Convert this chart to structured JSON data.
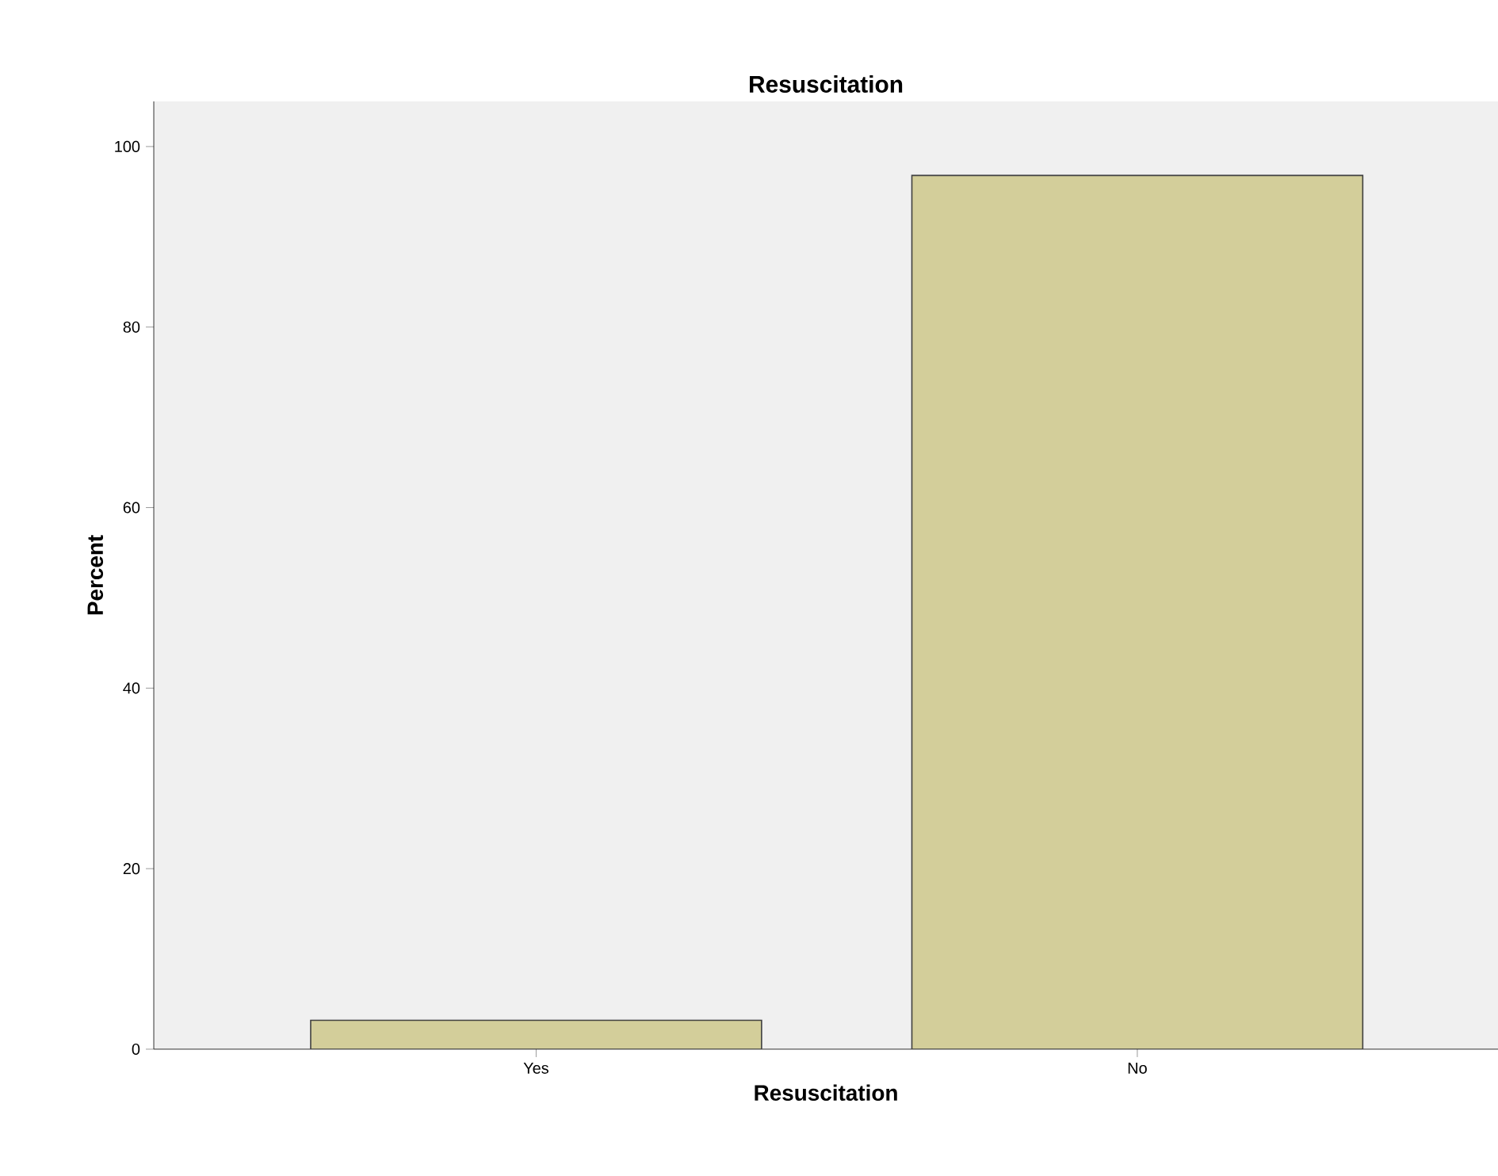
{
  "chart_data": {
    "type": "bar",
    "title": "Resuscitation",
    "xlabel": "Resuscitation",
    "ylabel": "Percent",
    "categories": [
      "Yes",
      "No"
    ],
    "values": [
      3.2,
      96.8
    ],
    "color": "#d3ce9a",
    "ylim": [
      0,
      105
    ],
    "yticks": [
      0,
      20,
      40,
      60,
      80,
      100
    ],
    "grid": false
  }
}
